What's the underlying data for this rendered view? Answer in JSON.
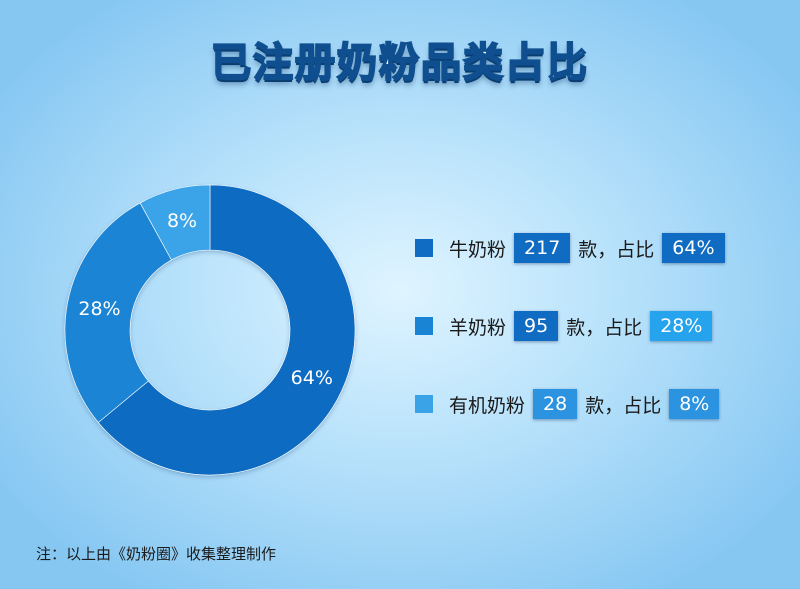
{
  "title": "已注册奶粉品类占比",
  "chart_data": {
    "type": "pie",
    "title": "已注册奶粉品类占比",
    "categories": [
      "牛奶粉",
      "羊奶粉",
      "有机奶粉"
    ],
    "counts": [
      217,
      95,
      28
    ],
    "values": [
      64,
      28,
      8
    ],
    "value_labels": [
      "64%",
      "28%",
      "8%"
    ],
    "colors": [
      "#0f6cc2",
      "#1a84d4",
      "#3aa3e8"
    ],
    "legend": "right"
  },
  "legend": {
    "unit_text": "款，占比",
    "items": [
      {
        "name": "牛奶粉",
        "count": "217",
        "percent": "64%",
        "swatch_color": "#0f6cc2",
        "count_bg": "#0f6cc2",
        "percent_bg": "#0f6cc2"
      },
      {
        "name": "羊奶粉",
        "count": "95",
        "percent": "28%",
        "swatch_color": "#1a84d4",
        "count_bg": "#0f6cc2",
        "percent_bg": "#25a3ec"
      },
      {
        "name": "有机奶粉",
        "count": "28",
        "percent": "8%",
        "swatch_color": "#3aa3e8",
        "count_bg": "#2b93e0",
        "percent_bg": "#2b93e0"
      }
    ]
  },
  "note": "注：以上由《奶粉圈》收集整理制作"
}
